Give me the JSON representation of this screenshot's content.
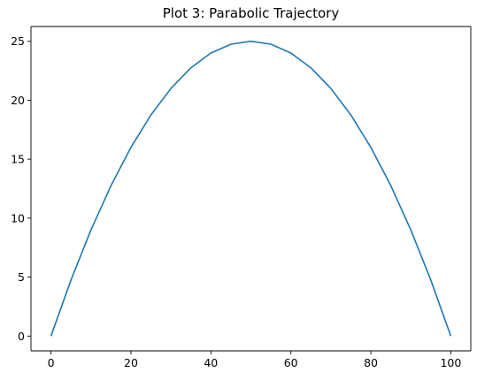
{
  "chart_data": {
    "type": "line",
    "title": "Plot 3: Parabolic Trajectory",
    "xlabel": "",
    "ylabel": "",
    "xlim": [
      -5,
      105
    ],
    "ylim": [
      -1.25,
      26.25
    ],
    "x_ticks": [
      0,
      20,
      40,
      60,
      80,
      100
    ],
    "y_ticks": [
      0,
      5,
      10,
      15,
      20,
      25
    ],
    "grid": false,
    "series": [
      {
        "color": "#1f77b4",
        "x": [
          0,
          5,
          10,
          15,
          20,
          25,
          30,
          35,
          40,
          45,
          50,
          55,
          60,
          65,
          70,
          75,
          80,
          85,
          90,
          95,
          100
        ],
        "y": [
          0,
          4.75,
          9,
          12.75,
          16,
          18.75,
          21,
          22.75,
          24,
          24.75,
          25,
          24.75,
          24,
          22.75,
          21,
          18.75,
          16,
          12.75,
          9,
          4.75,
          0
        ]
      }
    ]
  }
}
